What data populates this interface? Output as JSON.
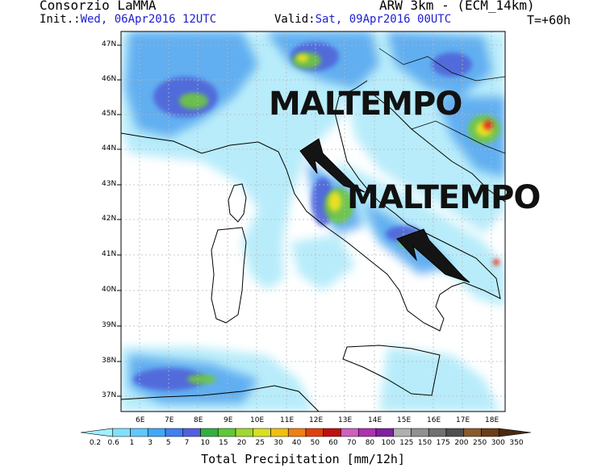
{
  "header": {
    "org": "Consorzio LaMMA",
    "model": "ARW 3km - (ECM_14km)",
    "init_label": "Init.:",
    "init_value": "Wed, 06Apr2016 12UTC",
    "valid_label": "Valid:",
    "valid_value": "Sat, 09Apr2016 00UTC",
    "forecast_step": "T=+60h"
  },
  "annotations": {
    "text1": "MALTEMPO",
    "text2": "MALTEMPO"
  },
  "map": {
    "lat_labels": [
      "47N",
      "46N",
      "45N",
      "44N",
      "43N",
      "42N",
      "41N",
      "40N",
      "39N",
      "38N",
      "37N"
    ],
    "lon_labels": [
      "6E",
      "7E",
      "8E",
      "9E",
      "10E",
      "11E",
      "12E",
      "13E",
      "14E",
      "15E",
      "16E",
      "17E",
      "18E"
    ],
    "extent": {
      "lon_min": 5.0,
      "lon_max": 18.8,
      "lat_min": 36.5,
      "lat_max": 47.2
    }
  },
  "colorbar": {
    "title": "Total Precipitation [mm/12h]",
    "labels": [
      "0.2",
      "0.6",
      "1",
      "3",
      "5",
      "7",
      "10",
      "15",
      "20",
      "25",
      "30",
      "40",
      "50",
      "60",
      "70",
      "80",
      "100",
      "125",
      "150",
      "175",
      "200",
      "250",
      "300",
      "350"
    ],
    "colors": [
      "#a0f0ff",
      "#80e0ff",
      "#60c8ff",
      "#40a8f8",
      "#4080f0",
      "#5060e0",
      "#30b040",
      "#60c838",
      "#a0d830",
      "#d8e020",
      "#f0c010",
      "#f08010",
      "#e04010",
      "#c01010",
      "#d060c0",
      "#b030b0",
      "#8020a0",
      "#b0b0b0",
      "#909090",
      "#707070",
      "#505050",
      "#8b5a2b",
      "#6b3e1a",
      "#4a2a10"
    ]
  }
}
